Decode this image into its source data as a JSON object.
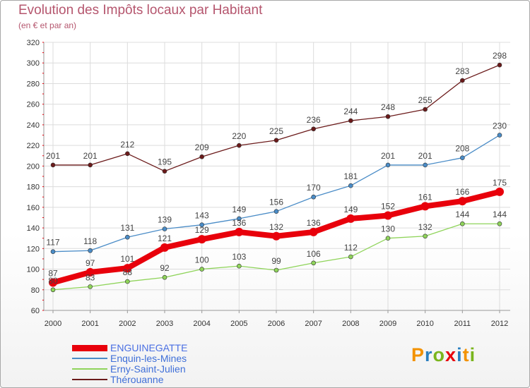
{
  "chart_data": {
    "type": "line",
    "title": "Evolution des Impôts locaux par Habitant",
    "subtitle": "(en € et par an)",
    "x": [
      "2000",
      "2001",
      "2002",
      "2003",
      "2004",
      "2005",
      "2006",
      "2007",
      "2008",
      "2009",
      "2010",
      "2011",
      "2012"
    ],
    "ylim": [
      60,
      320
    ],
    "yticks": [
      "60",
      "80",
      "100",
      "120",
      "140",
      "160",
      "180",
      "200",
      "220",
      "240",
      "260",
      "280",
      "300",
      "320"
    ],
    "grid": true,
    "legend_position": "bottom-left",
    "series": [
      {
        "name": "ENGUINEGATTE",
        "color": "#e8000b",
        "values": [
          87,
          97,
          101,
          121,
          129,
          136,
          132,
          136,
          149,
          152,
          161,
          166,
          175
        ]
      },
      {
        "name": "Enquin-les-Mines",
        "color": "#4a8cc7",
        "values": [
          117,
          118,
          131,
          139,
          143,
          149,
          156,
          170,
          181,
          201,
          201,
          208,
          230
        ]
      },
      {
        "name": "Erny-Saint-Julien",
        "color": "#8fd45a",
        "values": [
          80,
          83,
          88,
          92,
          100,
          103,
          99,
          106,
          112,
          130,
          132,
          144,
          144
        ]
      },
      {
        "name": "Thérouanne",
        "color": "#6b1a1a",
        "values": [
          201,
          201,
          212,
          195,
          209,
          220,
          225,
          236,
          244,
          248,
          255,
          283,
          298
        ]
      }
    ]
  },
  "logo": {
    "letters": [
      "P",
      "r",
      "o",
      "x",
      "i",
      "t",
      "i"
    ],
    "colors": [
      "#f39200",
      "#2a7fc0",
      "#7ab51d",
      "#e8000b",
      "#2a7fc0",
      "#f39200",
      "#7ab51d"
    ]
  }
}
